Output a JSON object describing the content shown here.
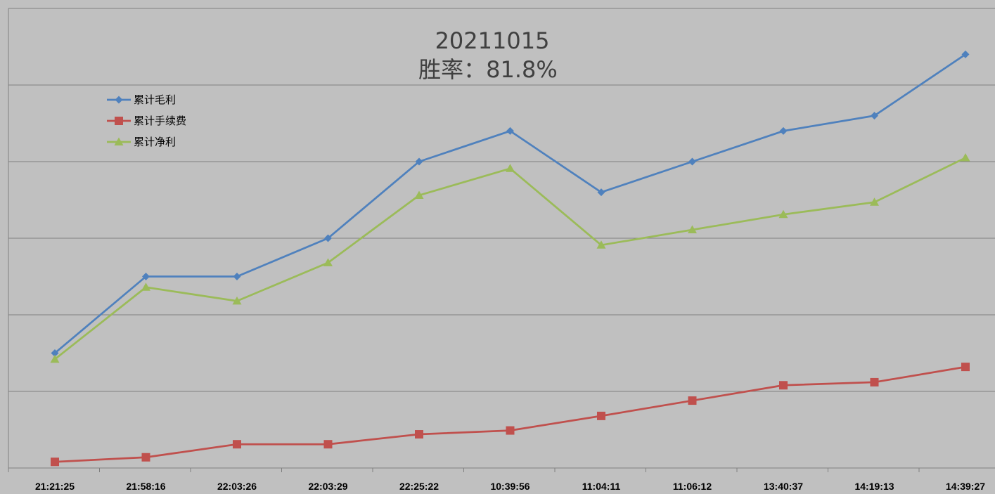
{
  "chart_data": {
    "type": "line",
    "title": "20211015",
    "subtitle": "胜率：81.8%",
    "x": [
      "21:21:25",
      "21:58:16",
      "22:03:26",
      "22:03:29",
      "22:25:22",
      "10:39:56",
      "11:04:11",
      "11:06:12",
      "13:40:37",
      "14:19:13",
      "14:39:27"
    ],
    "ylim": [
      0,
      6
    ],
    "grid": true,
    "legend_position": "top-left",
    "series": [
      {
        "name": "累计毛利",
        "color": "#4f81bd",
        "marker": "diamond",
        "values": [
          1.5,
          2.5,
          2.5,
          3.0,
          4.0,
          4.4,
          3.6,
          4.0,
          4.4,
          4.6,
          5.4
        ]
      },
      {
        "name": "累计手续费",
        "color": "#c0504d",
        "marker": "square",
        "values": [
          0.08,
          0.14,
          0.31,
          0.31,
          0.44,
          0.49,
          0.68,
          0.88,
          1.08,
          1.12,
          1.32
        ]
      },
      {
        "name": "累计净利",
        "color": "#9bbb59",
        "marker": "triangle",
        "values": [
          1.42,
          2.36,
          2.18,
          2.68,
          3.56,
          3.91,
          2.91,
          3.11,
          3.31,
          3.47,
          4.05
        ]
      }
    ]
  }
}
